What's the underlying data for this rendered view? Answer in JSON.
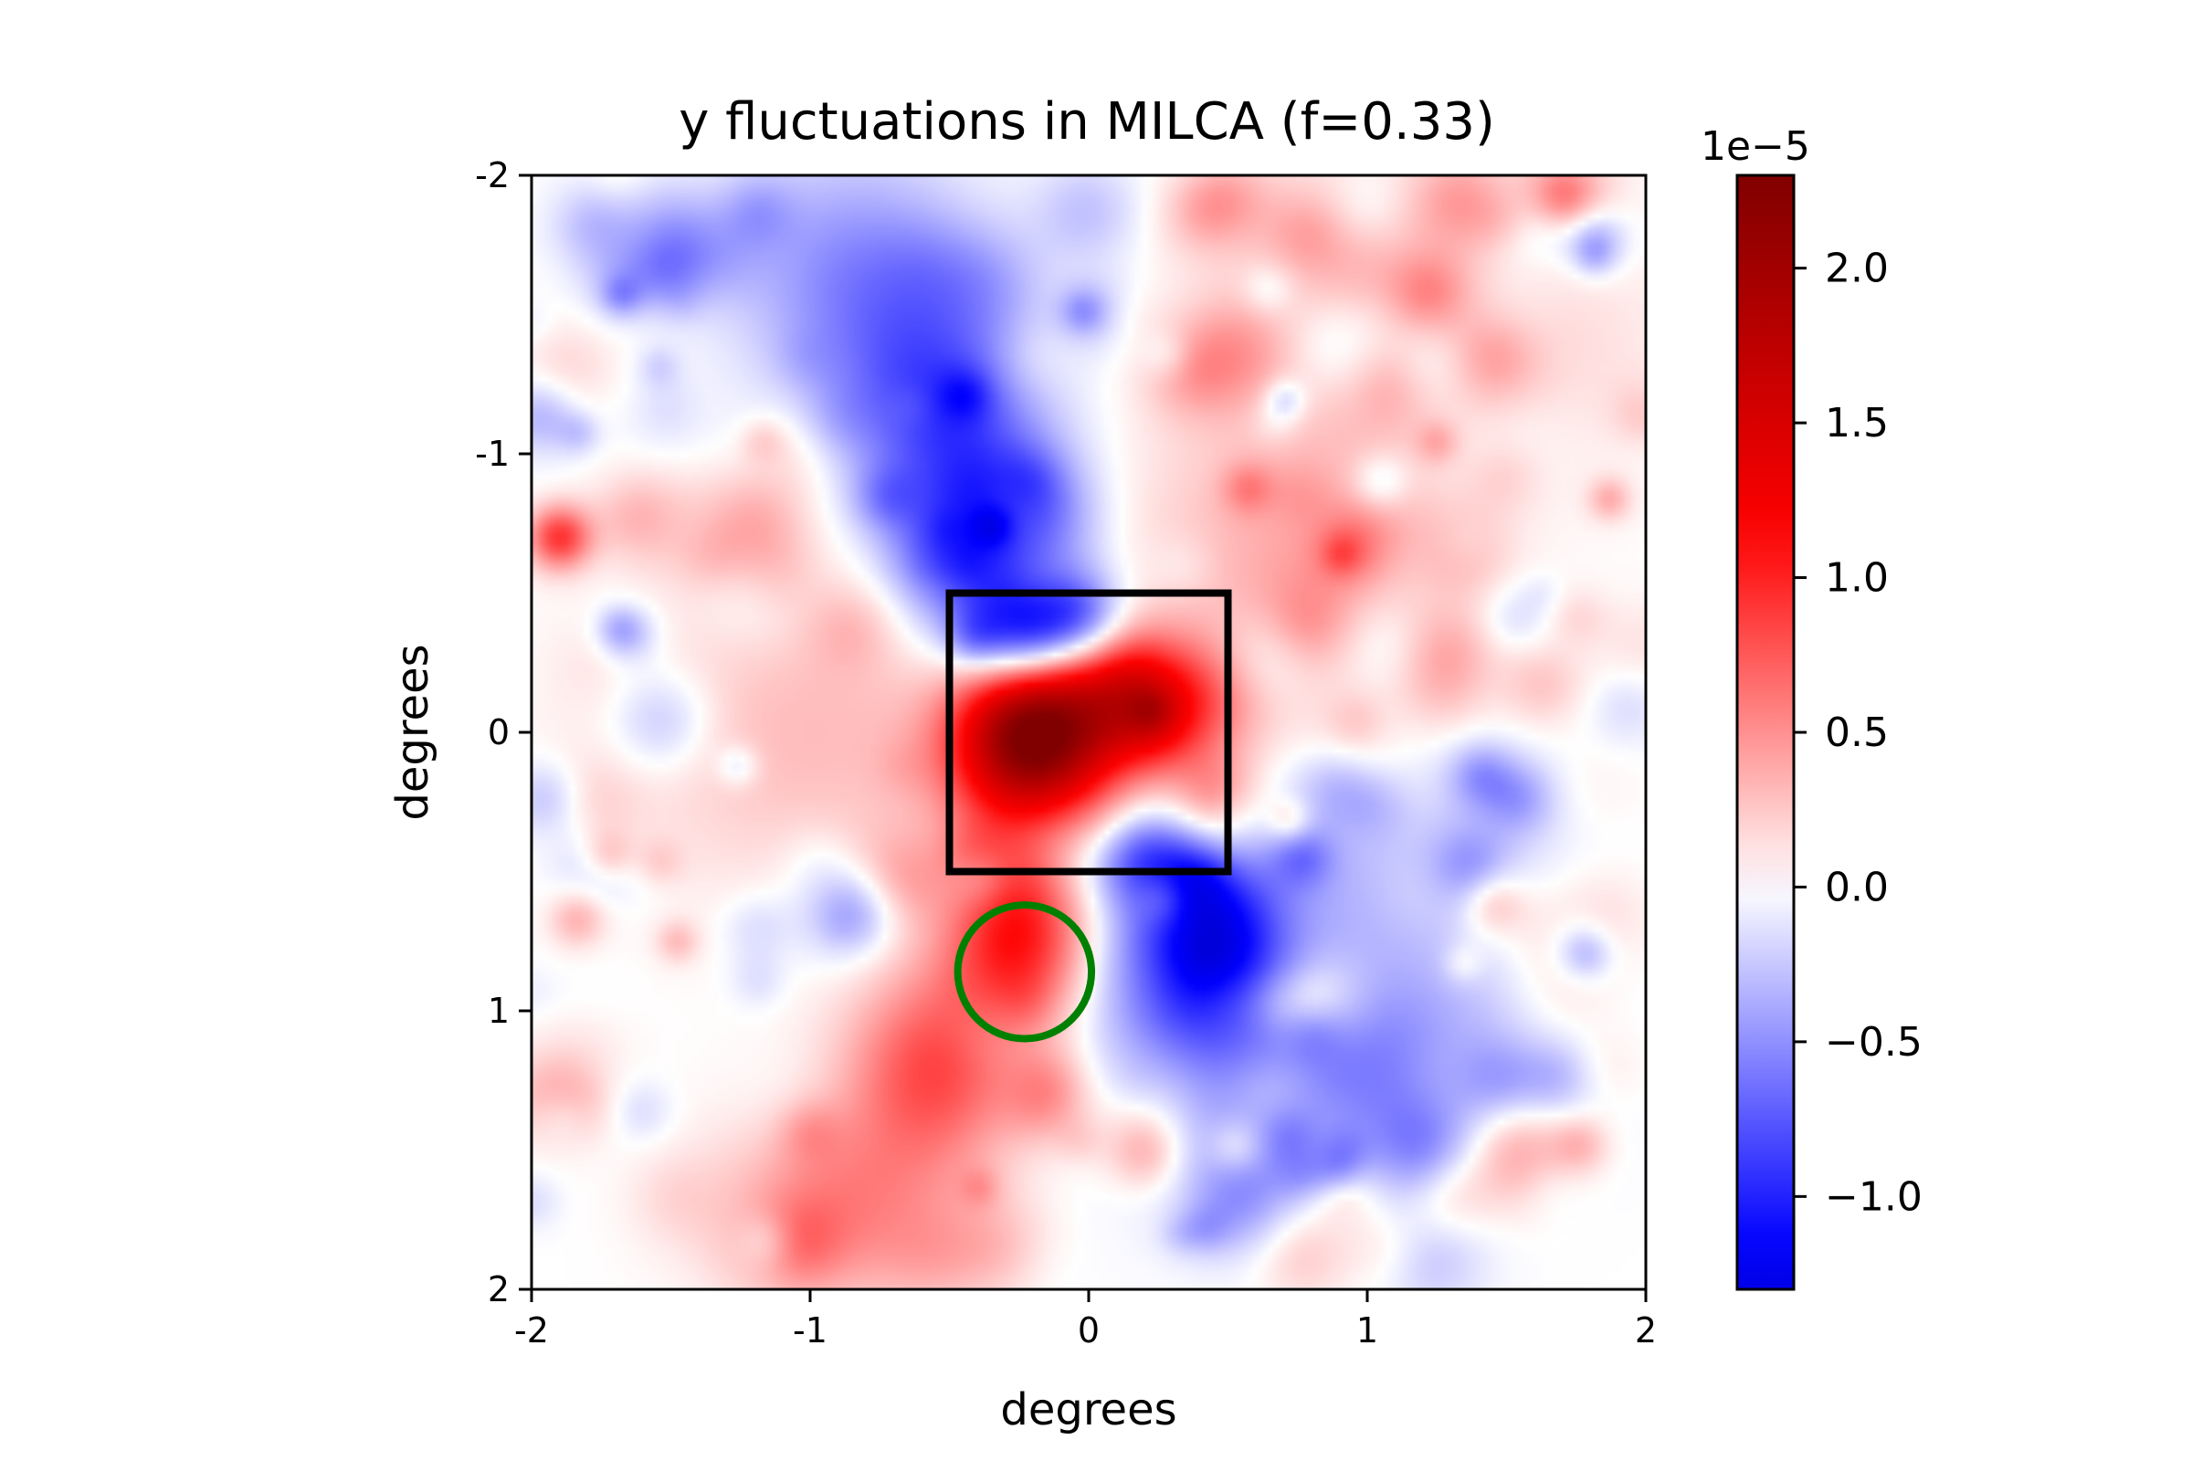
{
  "chart_data": {
    "type": "heatmap",
    "title": "y fluctuations in MILCA (f=0.33)",
    "xlabel": "degrees",
    "ylabel": "degrees",
    "xlim": [
      -2,
      2
    ],
    "ylim": [
      2,
      -2
    ],
    "x_ticks": [
      -2,
      -1,
      0,
      1,
      2
    ],
    "x_tick_labels": [
      "-2",
      "-1",
      "0",
      "1",
      "2"
    ],
    "y_ticks": [
      -2,
      -1,
      0,
      1,
      2
    ],
    "y_tick_labels": [
      "-2",
      "-1",
      "0",
      "1",
      "2"
    ],
    "colormap": "seismic",
    "colorbar": {
      "multiplier_label": "1e−5",
      "range": [
        -1.3,
        2.3
      ],
      "ticks": [
        -1.0,
        -0.5,
        0.0,
        0.5,
        1.0,
        1.5,
        2.0
      ],
      "tick_labels": [
        "−1.0",
        "−0.5",
        "0.0",
        "0.5",
        "1.0",
        "1.5",
        "2.0"
      ]
    },
    "features": [
      {
        "kind": "negative",
        "sign": -1,
        "amp": 1.25,
        "cx": -0.2,
        "cy": -0.35,
        "sx": 0.2,
        "sy": 0.14
      },
      {
        "kind": "negative",
        "sign": -1,
        "amp": 0.95,
        "cx": -0.35,
        "cy": -0.7,
        "sx": 0.22,
        "sy": 0.25
      },
      {
        "kind": "negative",
        "sign": -1,
        "amp": 0.75,
        "cx": -0.55,
        "cy": -1.2,
        "sx": 0.25,
        "sy": 0.28
      },
      {
        "kind": "negative",
        "sign": -1,
        "amp": 0.5,
        "cx": -0.85,
        "cy": -1.65,
        "sx": 0.3,
        "sy": 0.3
      },
      {
        "kind": "negative",
        "sign": -1,
        "amp": 1.0,
        "cx": 0.38,
        "cy": 0.8,
        "sx": 0.22,
        "sy": 0.22
      },
      {
        "kind": "negative",
        "sign": -1,
        "amp": 0.75,
        "cx": 0.2,
        "cy": 0.45,
        "sx": 0.15,
        "sy": 0.12
      },
      {
        "kind": "negative",
        "sign": -1,
        "amp": 0.55,
        "cx": 0.6,
        "cy": 1.25,
        "sx": 0.35,
        "sy": 0.3
      },
      {
        "kind": "negative",
        "sign": -1,
        "amp": 0.45,
        "cx": 1.25,
        "cy": 1.3,
        "sx": 0.3,
        "sy": 0.25
      },
      {
        "kind": "negative",
        "sign": -1,
        "amp": 0.35,
        "cx": 1.1,
        "cy": 0.5,
        "sx": 0.35,
        "sy": 0.35
      },
      {
        "kind": "positive",
        "sign": 1,
        "amp": 2.0,
        "cx": -0.2,
        "cy": 0.05,
        "sx": 0.2,
        "sy": 0.22
      },
      {
        "kind": "positive",
        "sign": 1,
        "amp": 1.3,
        "cx": 0.2,
        "cy": -0.1,
        "sx": 0.22,
        "sy": 0.16
      },
      {
        "kind": "positive",
        "sign": 1,
        "amp": 1.0,
        "cx": -0.25,
        "cy": 0.75,
        "sx": 0.18,
        "sy": 0.2
      },
      {
        "kind": "positive",
        "sign": 1,
        "amp": 0.8,
        "cx": -0.55,
        "cy": 1.2,
        "sx": 0.22,
        "sy": 0.25
      },
      {
        "kind": "positive",
        "sign": 1,
        "amp": 0.55,
        "cx": -0.9,
        "cy": 1.7,
        "sx": 0.3,
        "sy": 0.25
      },
      {
        "kind": "positive",
        "sign": 1,
        "amp": 0.9,
        "cx": -1.9,
        "cy": -0.7,
        "sx": 0.08,
        "sy": 0.08
      },
      {
        "kind": "positive",
        "sign": 1,
        "amp": 0.35,
        "cx": 0.7,
        "cy": -0.6,
        "sx": 0.4,
        "sy": 0.4
      },
      {
        "kind": "positive",
        "sign": 1,
        "amp": 0.3,
        "cx": -1.0,
        "cy": 0.0,
        "sx": 0.5,
        "sy": 0.4
      },
      {
        "kind": "positive",
        "sign": 1,
        "amp": 0.3,
        "cx": 1.2,
        "cy": -1.5,
        "sx": 0.5,
        "sy": 0.4
      }
    ],
    "overlays": [
      {
        "shape": "rectangle",
        "color": "#000000",
        "x0": -0.5,
        "x1": 0.5,
        "y0": -0.5,
        "y1": 0.5
      },
      {
        "shape": "circle",
        "color": "#008000",
        "cx": -0.23,
        "cy": 0.86,
        "r": 0.24
      }
    ]
  }
}
